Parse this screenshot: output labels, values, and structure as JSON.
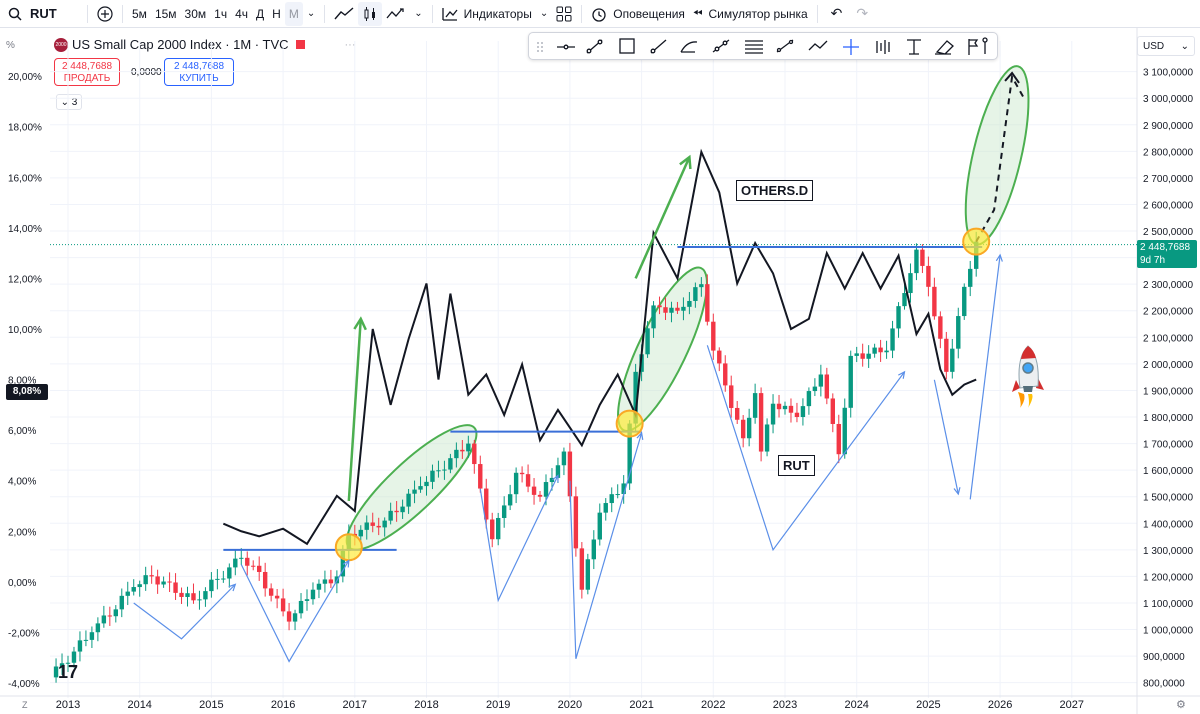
{
  "topbar": {
    "symbol": "RUT",
    "intervals": [
      "5м",
      "15м",
      "30м",
      "1ч",
      "4ч",
      "Д",
      "Н",
      "М"
    ],
    "active_interval": "М",
    "indicators_label": "Индикаторы",
    "alerts_label": "Оповещения",
    "replay_label": "Симулятор рынка"
  },
  "legend": {
    "badge": "2000",
    "title": "US Small Cap 2000 Index · 1M · TVC",
    "sell_price": "2 448,7688",
    "sell_label": "ПРОДАТЬ",
    "spread": "0,0000",
    "buy_price": "2 448,7688",
    "buy_label": "КУПИТЬ",
    "collapse_count": "3"
  },
  "axis": {
    "percent_label": "%",
    "currency": "USD",
    "left_current": "8,08%",
    "right_current_price": "2 448,7688",
    "right_current_countdown": "9d 7h",
    "bottom_left": "Z",
    "bottom_right": "⚙"
  },
  "annotations": {
    "others_label": "OTHERS.D",
    "rut_label": "RUT"
  },
  "colors": {
    "up": "#089981",
    "down": "#f23645",
    "others_line": "#131722",
    "level_line": "#3a6fd8",
    "arrow_blue": "#5b8fe8",
    "arrow_green": "#4caf50",
    "ellipse_fill": "#c8e6c9",
    "ellipse_stroke": "#4caf50",
    "circle_fill": "#ffeb3b",
    "circle_stroke": "#f9a825",
    "price_tag": "#089981"
  },
  "chart_data": {
    "type": "candlestick",
    "title": "US Small Cap 2000 Index · 1M · TVC",
    "x_ticks": [
      "2013",
      "2014",
      "2015",
      "2016",
      "2017",
      "2018",
      "2019",
      "2020",
      "2021",
      "2022",
      "2023",
      "2024",
      "2025",
      "2026",
      "2027"
    ],
    "y_right": {
      "label": "USD",
      "ticks": [
        800,
        900,
        1000,
        1100,
        1200,
        1300,
        1400,
        1500,
        1600,
        1700,
        1800,
        1900,
        2000,
        2100,
        2200,
        2300,
        2400,
        2500,
        2600,
        2700,
        2800,
        2900,
        3000,
        3100
      ],
      "tick_labels": [
        "800,0000",
        "900,0000",
        "1 000,0000",
        "1 100,0000",
        "1 200,0000",
        "1 300,0000",
        "1 400,0000",
        "1 500,0000",
        "1 600,0000",
        "1 700,0000",
        "1 800,0000",
        "1 900,0000",
        "2 000,0000",
        "2 100,0000",
        "2 200,0000",
        "2 300,0000",
        "2 400,0000",
        "2 500,0000",
        "2 600,0000",
        "2 700,0000",
        "2 800,0000",
        "2 900,0000",
        "3 000,0000",
        "3 100,0000"
      ],
      "range": [
        780,
        3140
      ]
    },
    "y_left": {
      "label": "%",
      "ticks": [
        -4,
        -2,
        0,
        2,
        4,
        6,
        8,
        10,
        12,
        14,
        16,
        18,
        20
      ],
      "tick_labels": [
        "-4,00%",
        "-2,00%",
        "0,00%",
        "2,00%",
        "4,00%",
        "6,00%",
        "8,00%",
        "10,00%",
        "12,00%",
        "14,00%",
        "16,00%",
        "18,00%",
        "20,00%"
      ],
      "range": [
        -4.2,
        20.6
      ]
    },
    "series": [
      {
        "name": "RUT",
        "axis": "right",
        "anchors": [
          [
            "2012-10",
            820
          ],
          [
            "2013-05",
            990
          ],
          [
            "2013-12",
            1160
          ],
          [
            "2014-03",
            1200
          ],
          [
            "2014-10",
            1110
          ],
          [
            "2015-06",
            1270
          ],
          [
            "2015-08",
            1240
          ],
          [
            "2016-02",
            1030
          ],
          [
            "2016-06",
            1150
          ],
          [
            "2016-10",
            1200
          ],
          [
            "2016-12",
            1360
          ],
          [
            "2017-06",
            1410
          ],
          [
            "2017-12",
            1540
          ],
          [
            "2018-08",
            1700
          ],
          [
            "2018-12",
            1340
          ],
          [
            "2019-04",
            1590
          ],
          [
            "2019-08",
            1500
          ],
          [
            "2019-12",
            1670
          ],
          [
            "2020-03",
            1150
          ],
          [
            "2020-06",
            1440
          ],
          [
            "2020-10",
            1550
          ],
          [
            "2020-12",
            1970
          ],
          [
            "2021-03",
            2220
          ],
          [
            "2021-07",
            2200
          ],
          [
            "2021-11",
            2300
          ],
          [
            "2022-01",
            2050
          ],
          [
            "2022-06",
            1720
          ],
          [
            "2022-08",
            1890
          ],
          [
            "2022-09",
            1670
          ],
          [
            "2022-11",
            1850
          ],
          [
            "2023-03",
            1800
          ],
          [
            "2023-07",
            1960
          ],
          [
            "2023-10",
            1660
          ],
          [
            "2023-12",
            2030
          ],
          [
            "2024-06",
            2050
          ],
          [
            "2024-11",
            2430
          ],
          [
            "2025-01",
            2290
          ],
          [
            "2025-04",
            1970
          ],
          [
            "2025-06",
            2180
          ],
          [
            "2025-09",
            2460
          ]
        ],
        "projection": [
          [
            "2025-09",
            2460
          ],
          [
            "2025-12",
            2580
          ],
          [
            "2026-03",
            3080
          ],
          [
            "2026-05",
            3000
          ]
        ]
      },
      {
        "name": "OTHERS.D",
        "axis": "left",
        "points": [
          [
            "2015-03",
            2.3
          ],
          [
            "2015-06",
            2.0
          ],
          [
            "2015-09",
            1.8
          ],
          [
            "2016-01",
            2.1
          ],
          [
            "2016-05",
            1.5
          ],
          [
            "2016-10",
            3.4
          ],
          [
            "2017-01",
            2.8
          ],
          [
            "2017-04",
            10.0
          ],
          [
            "2017-07",
            7.0
          ],
          [
            "2017-10",
            9.6
          ],
          [
            "2018-01",
            11.8
          ],
          [
            "2018-03",
            8.0
          ],
          [
            "2018-05",
            11.4
          ],
          [
            "2018-08",
            7.4
          ],
          [
            "2018-11",
            8.2
          ],
          [
            "2019-02",
            6.6
          ],
          [
            "2019-05",
            8.6
          ],
          [
            "2019-08",
            5.6
          ],
          [
            "2019-11",
            6.8
          ],
          [
            "2020-03",
            5.4
          ],
          [
            "2020-06",
            7.0
          ],
          [
            "2020-09",
            8.2
          ],
          [
            "2020-12",
            6.6
          ],
          [
            "2021-03",
            13.8
          ],
          [
            "2021-07",
            12.0
          ],
          [
            "2021-11",
            17.0
          ],
          [
            "2022-02",
            15.4
          ],
          [
            "2022-05",
            11.8
          ],
          [
            "2022-08",
            13.4
          ],
          [
            "2022-11",
            12.2
          ],
          [
            "2023-02",
            10.0
          ],
          [
            "2023-05",
            10.4
          ],
          [
            "2023-08",
            13.0
          ],
          [
            "2023-11",
            11.6
          ],
          [
            "2024-02",
            13.0
          ],
          [
            "2024-05",
            11.6
          ],
          [
            "2024-08",
            12.9
          ],
          [
            "2024-11",
            9.8
          ],
          [
            "2025-01",
            10.6
          ],
          [
            "2025-03",
            8.4
          ],
          [
            "2025-05",
            7.4
          ],
          [
            "2025-07",
            7.8
          ],
          [
            "2025-09",
            8.0
          ]
        ]
      }
    ],
    "levels": [
      {
        "from": "2015-03",
        "to": "2017-08",
        "value": 1300,
        "axis": "right"
      },
      {
        "from": "2018-05",
        "to": "2021-01",
        "value": 1745,
        "axis": "right"
      },
      {
        "from": "2021-07",
        "to": "2025-10",
        "value": 2440,
        "axis": "right"
      }
    ],
    "current_value": {
      "price": 2448.7688,
      "percent": 8.08
    },
    "grid": true,
    "legend": "top-left"
  }
}
